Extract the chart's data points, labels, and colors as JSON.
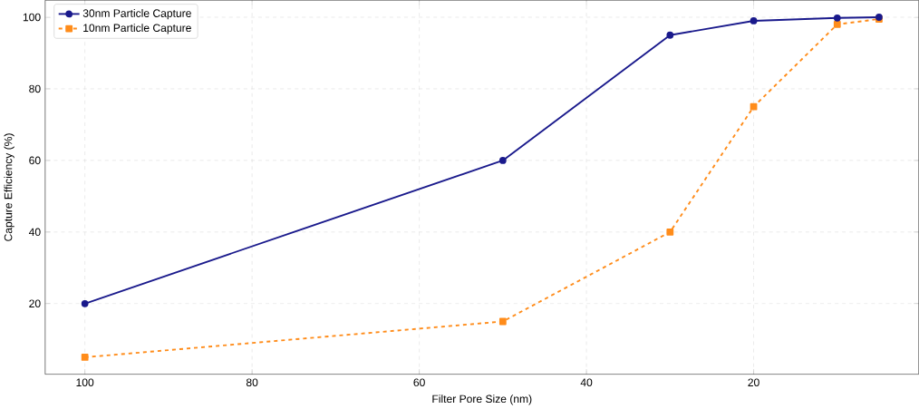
{
  "chart_data": {
    "type": "line",
    "xlabel": "Filter Pore Size (nm)",
    "ylabel": "Capture Efficiency (%)",
    "x": [
      100,
      50,
      30,
      20,
      10,
      5
    ],
    "series": [
      {
        "name": "30nm Particle Capture",
        "color": "#1a1a8c",
        "values": [
          20,
          60,
          95,
          99,
          99.8,
          100
        ],
        "marker": "circle",
        "line_style": "solid"
      },
      {
        "name": "10nm Particle Capture",
        "color": "#ff8c1a",
        "values": [
          5,
          15,
          40,
          75,
          98,
          99.5
        ],
        "marker": "square",
        "line_style": "dashed"
      }
    ],
    "xlim": [
      104.75,
      0.25
    ],
    "ylim": [
      0.25,
      104.75
    ],
    "xticks": [
      100,
      80,
      60,
      40,
      20
    ],
    "yticks": [
      20,
      40,
      60,
      80,
      100
    ],
    "grid": true,
    "legend": "top left"
  }
}
